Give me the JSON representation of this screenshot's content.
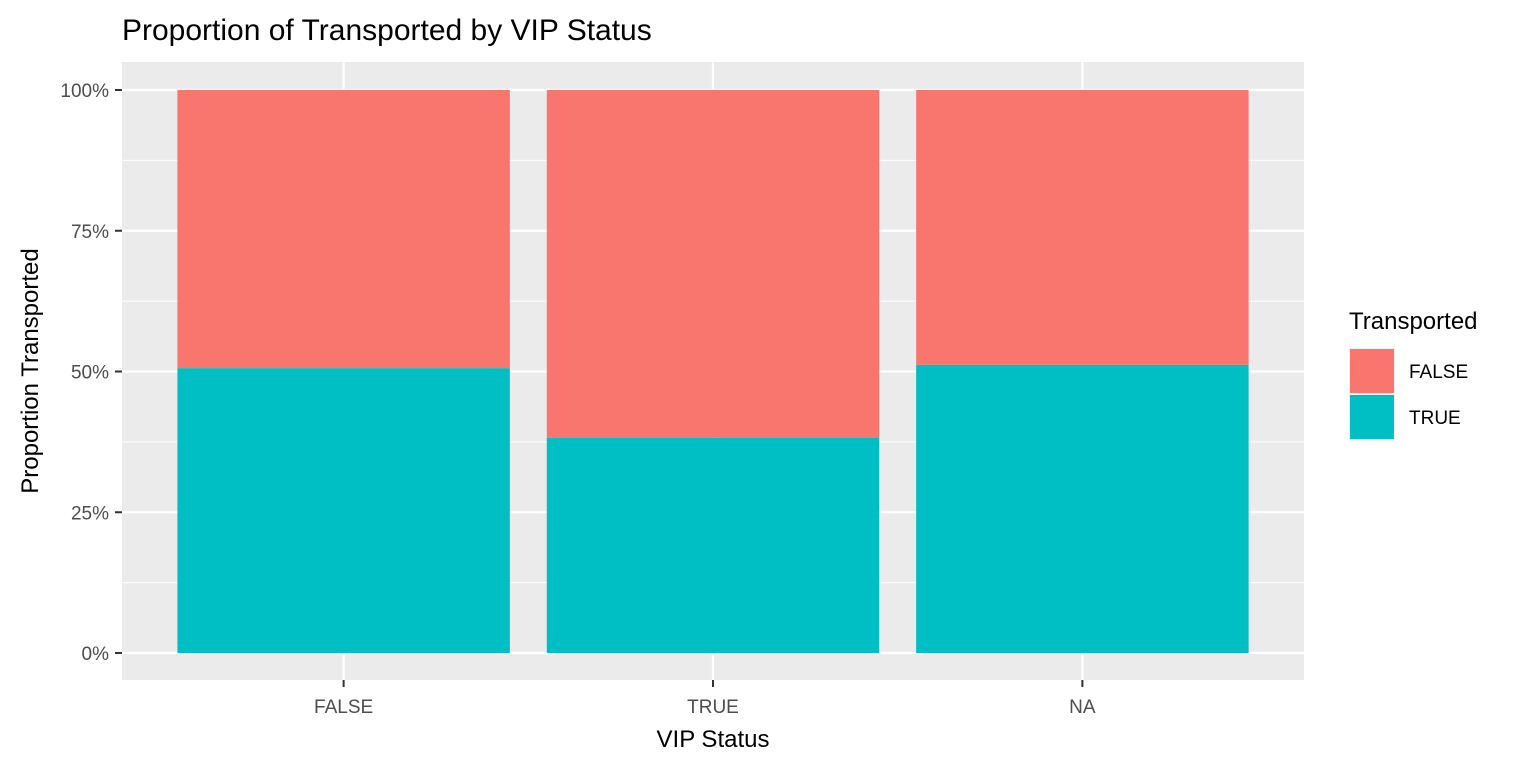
{
  "chart_data": {
    "type": "bar",
    "stacked": true,
    "position": "fill",
    "title": "Proportion of Transported by VIP Status",
    "xlabel": "VIP Status",
    "ylabel": "Proportion Transported",
    "categories": [
      "FALSE",
      "TRUE",
      "NA"
    ],
    "ylim": [
      0,
      1
    ],
    "yticks": [
      0,
      0.25,
      0.5,
      0.75,
      1
    ],
    "ytick_labels": [
      "0%",
      "25%",
      "50%",
      "75%",
      "100%"
    ],
    "grid": true,
    "legend": {
      "title": "Transported",
      "placement": "right"
    },
    "series": [
      {
        "name": "FALSE",
        "color": "#F8766D",
        "values": [
          0.494,
          0.618,
          0.488
        ]
      },
      {
        "name": "TRUE",
        "color": "#00BFC4",
        "values": [
          0.506,
          0.382,
          0.512
        ]
      }
    ],
    "panel_background": "#EBEBEB",
    "gridline_color": "#FFFFFF"
  }
}
